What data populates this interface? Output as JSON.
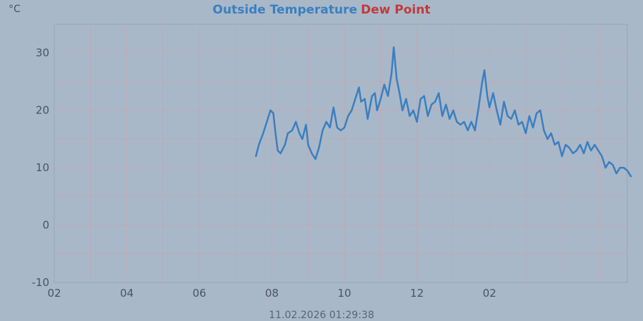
{
  "chart_data": {
    "type": "line",
    "title_parts": [
      {
        "text": "Outside Temperature",
        "color": "#3a7fc0"
      },
      {
        "text": "Dew Point",
        "color": "#c13a3a"
      }
    ],
    "ylabel": "°C",
    "ylim": [
      -10,
      35
    ],
    "xlim": [
      2.0,
      9.9
    ],
    "y_ticks": [
      {
        "value": -10,
        "label": "-10"
      },
      {
        "value": 0,
        "label": "0"
      },
      {
        "value": 10,
        "label": "10"
      },
      {
        "value": 20,
        "label": "20"
      },
      {
        "value": 30,
        "label": "30"
      }
    ],
    "x_ticks": [
      {
        "value": 2.0,
        "label": "02"
      },
      {
        "value": 3.0,
        "label": "04"
      },
      {
        "value": 4.0,
        "label": "06"
      },
      {
        "value": 5.0,
        "label": "08"
      },
      {
        "value": 6.0,
        "label": "10"
      },
      {
        "value": 7.0,
        "label": "12"
      },
      {
        "value": 8.0,
        "label": "02"
      }
    ],
    "grid": true,
    "timestamp": "11.02.2026 01:29:38",
    "series": [
      {
        "name": "Outside Temperature",
        "color": "#3a7fc0",
        "points": [
          [
            4.78,
            12
          ],
          [
            4.82,
            14
          ],
          [
            4.88,
            16
          ],
          [
            4.93,
            18
          ],
          [
            4.98,
            20
          ],
          [
            5.02,
            19.5
          ],
          [
            5.05,
            16
          ],
          [
            5.08,
            13
          ],
          [
            5.12,
            12.5
          ],
          [
            5.18,
            14
          ],
          [
            5.22,
            16
          ],
          [
            5.28,
            16.5
          ],
          [
            5.33,
            18
          ],
          [
            5.38,
            16
          ],
          [
            5.42,
            15
          ],
          [
            5.47,
            17.5
          ],
          [
            5.5,
            14
          ],
          [
            5.55,
            12.5
          ],
          [
            5.6,
            11.5
          ],
          [
            5.65,
            13.5
          ],
          [
            5.7,
            16.5
          ],
          [
            5.75,
            18
          ],
          [
            5.8,
            17
          ],
          [
            5.85,
            20.5
          ],
          [
            5.9,
            17
          ],
          [
            5.95,
            16.5
          ],
          [
            6.0,
            17
          ],
          [
            6.05,
            19
          ],
          [
            6.1,
            20
          ],
          [
            6.15,
            22
          ],
          [
            6.2,
            24
          ],
          [
            6.23,
            21.5
          ],
          [
            6.28,
            22
          ],
          [
            6.32,
            18.5
          ],
          [
            6.38,
            22.5
          ],
          [
            6.42,
            23
          ],
          [
            6.45,
            20
          ],
          [
            6.5,
            22
          ],
          [
            6.55,
            24.5
          ],
          [
            6.6,
            22.5
          ],
          [
            6.65,
            26.5
          ],
          [
            6.68,
            31
          ],
          [
            6.72,
            25.5
          ],
          [
            6.76,
            23
          ],
          [
            6.8,
            20
          ],
          [
            6.85,
            22
          ],
          [
            6.9,
            19
          ],
          [
            6.95,
            20
          ],
          [
            7.0,
            18
          ],
          [
            7.05,
            22
          ],
          [
            7.1,
            22.5
          ],
          [
            7.15,
            19
          ],
          [
            7.2,
            21
          ],
          [
            7.25,
            21.5
          ],
          [
            7.3,
            23
          ],
          [
            7.35,
            19
          ],
          [
            7.4,
            21
          ],
          [
            7.45,
            18.5
          ],
          [
            7.5,
            20
          ],
          [
            7.55,
            18
          ],
          [
            7.6,
            17.5
          ],
          [
            7.65,
            18
          ],
          [
            7.7,
            16.5
          ],
          [
            7.75,
            18
          ],
          [
            7.8,
            16.5
          ],
          [
            7.85,
            20.5
          ],
          [
            7.9,
            25
          ],
          [
            7.93,
            27
          ],
          [
            7.97,
            22.5
          ],
          [
            8.0,
            20.5
          ],
          [
            8.05,
            23
          ],
          [
            8.1,
            20
          ],
          [
            8.15,
            17.5
          ],
          [
            8.2,
            21.5
          ],
          [
            8.25,
            19
          ],
          [
            8.3,
            18.5
          ],
          [
            8.35,
            20
          ],
          [
            8.4,
            17.5
          ],
          [
            8.45,
            18
          ],
          [
            8.5,
            16
          ],
          [
            8.55,
            19
          ],
          [
            8.6,
            17
          ],
          [
            8.65,
            19.5
          ],
          [
            8.7,
            20
          ],
          [
            8.75,
            16.5
          ],
          [
            8.8,
            15
          ],
          [
            8.85,
            16
          ],
          [
            8.9,
            14
          ],
          [
            8.95,
            14.5
          ],
          [
            9.0,
            12
          ],
          [
            9.05,
            14
          ],
          [
            9.1,
            13.5
          ],
          [
            9.15,
            12.5
          ],
          [
            9.2,
            13
          ],
          [
            9.25,
            14
          ],
          [
            9.3,
            12.5
          ],
          [
            9.35,
            14.5
          ],
          [
            9.4,
            13
          ],
          [
            9.45,
            14
          ],
          [
            9.5,
            13
          ],
          [
            9.55,
            12
          ],
          [
            9.6,
            10
          ],
          [
            9.65,
            11
          ],
          [
            9.7,
            10.5
          ],
          [
            9.75,
            9
          ],
          [
            9.8,
            10
          ],
          [
            9.85,
            10
          ],
          [
            9.9,
            9.5
          ],
          [
            9.95,
            8.5
          ]
        ]
      }
    ]
  }
}
